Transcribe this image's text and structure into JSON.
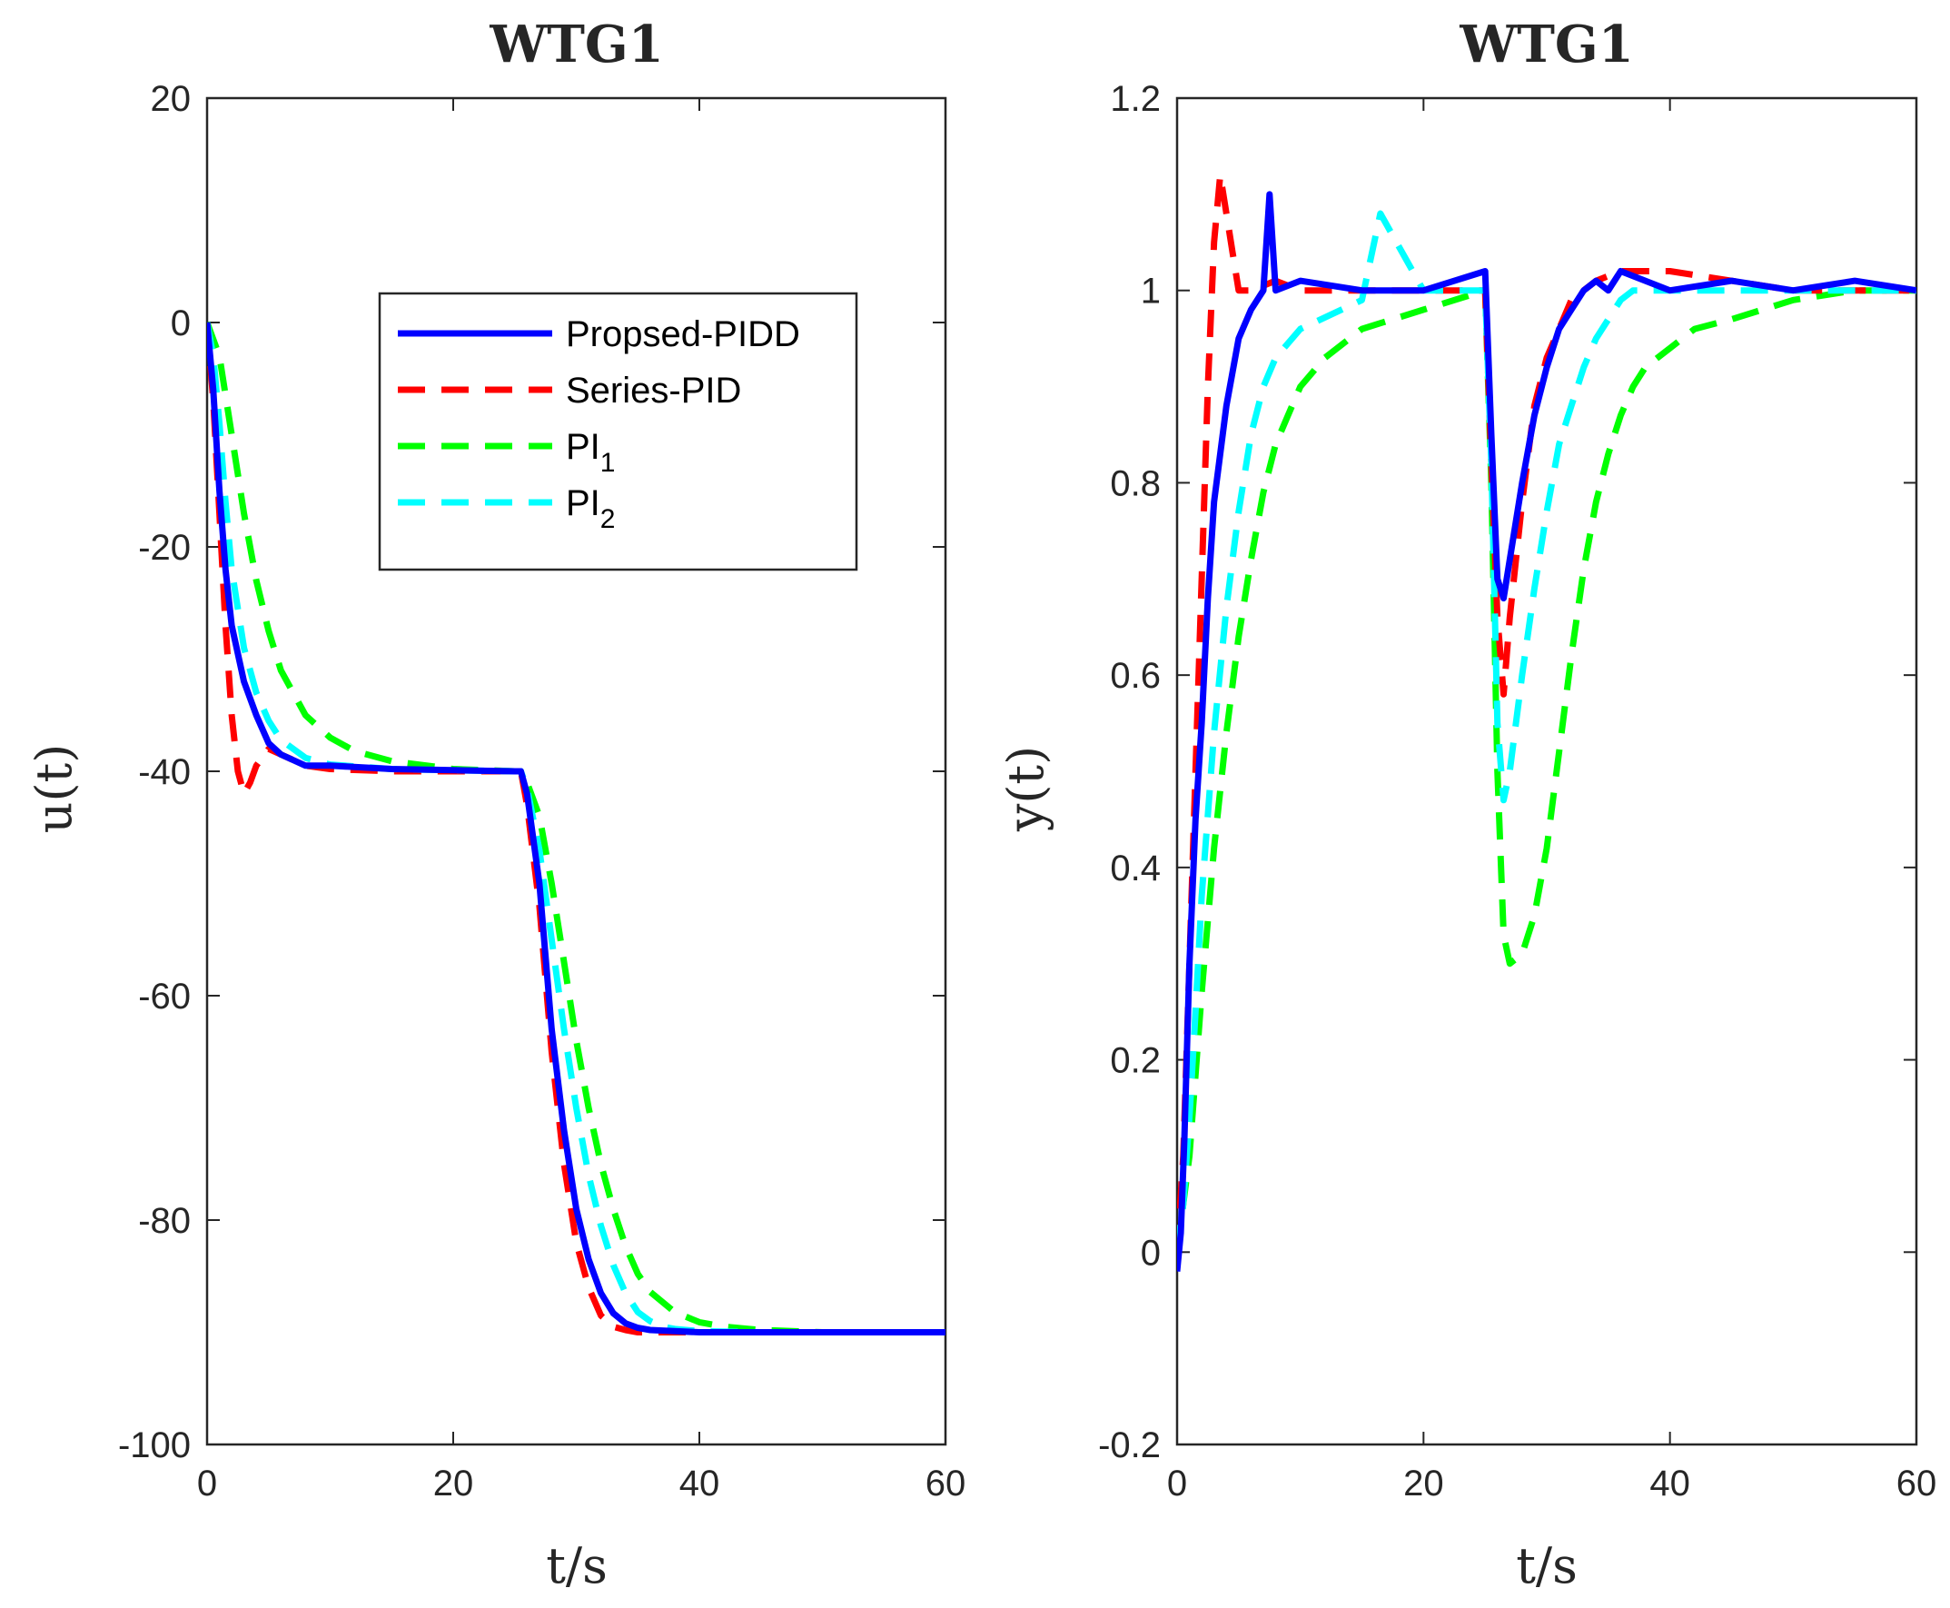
{
  "chart_data": [
    {
      "type": "line",
      "title": "WTG1",
      "xlabel": "t/s",
      "ylabel": "u(t)",
      "xlim": [
        0,
        60
      ],
      "ylim": [
        -100,
        20
      ],
      "xticks": [
        0,
        20,
        40,
        60
      ],
      "yticks": [
        -100,
        -80,
        -60,
        -40,
        -20,
        0,
        20
      ],
      "grid": false,
      "legend": {
        "location": "upper center",
        "entries": [
          {
            "label": "Propsed-PIDD",
            "sub": "",
            "color": "#0000ff",
            "style": "solid"
          },
          {
            "label": "Series-PID",
            "sub": "",
            "color": "#ff0000",
            "style": "dashed"
          },
          {
            "label": "PI",
            "sub": "1",
            "color": "#00ff00",
            "style": "dashed"
          },
          {
            "label": "PI",
            "sub": "2",
            "color": "#00ffff",
            "style": "dashed"
          }
        ]
      },
      "series": [
        {
          "name": "Propsed-PIDD",
          "color": "#0000ff",
          "style": "solid",
          "x": [
            0,
            0.5,
            1,
            1.5,
            2,
            3,
            4,
            5,
            6,
            8,
            10,
            15,
            20,
            25,
            25.5,
            26,
            27,
            28,
            29,
            30,
            31,
            32,
            33,
            34,
            35,
            36,
            38,
            40,
            45,
            50,
            55,
            60
          ],
          "y": [
            0,
            -6,
            -15,
            -22,
            -27,
            -32,
            -35,
            -37.5,
            -38.5,
            -39.5,
            -39.5,
            -39.8,
            -39.9,
            -40,
            -40,
            -42,
            -50,
            -63,
            -72,
            -79,
            -83.5,
            -86.5,
            -88.3,
            -89.2,
            -89.6,
            -89.8,
            -89.9,
            -90,
            -90,
            -90,
            -90,
            -90
          ]
        },
        {
          "name": "Series-PID",
          "color": "#ff0000",
          "style": "dashed",
          "x": [
            0,
            0.5,
            1,
            1.5,
            2,
            2.5,
            3,
            3.5,
            4,
            5,
            6,
            8,
            10,
            15,
            20,
            25,
            25.5,
            26,
            27,
            28,
            29,
            30,
            31,
            32,
            33,
            34,
            35,
            36,
            38,
            40,
            45,
            50,
            55,
            60
          ],
          "y": [
            0,
            -7,
            -17,
            -27,
            -35,
            -40,
            -42,
            -41,
            -39.5,
            -38,
            -38.5,
            -39.5,
            -39.8,
            -40,
            -40,
            -40,
            -40,
            -43,
            -52,
            -65,
            -75,
            -82,
            -86,
            -88.5,
            -89.5,
            -89.8,
            -90,
            -90,
            -90,
            -90,
            -90,
            -90,
            -90,
            -90
          ]
        },
        {
          "name": "PI_1",
          "color": "#00ff00",
          "style": "dashed",
          "x": [
            0,
            1,
            2,
            3,
            4,
            5,
            6,
            8,
            10,
            12,
            15,
            20,
            25,
            25.5,
            26,
            27,
            28,
            29,
            30,
            31,
            32,
            33,
            34,
            35,
            36,
            38,
            40,
            42,
            45,
            50,
            55,
            60
          ],
          "y": [
            0,
            -3,
            -10,
            -17,
            -23,
            -27.5,
            -31,
            -35,
            -37,
            -38.2,
            -39.1,
            -39.8,
            -40,
            -40,
            -41,
            -44,
            -50,
            -57,
            -64,
            -70,
            -75,
            -79,
            -82.3,
            -84.8,
            -86.4,
            -88.2,
            -89.1,
            -89.5,
            -89.8,
            -90,
            -90,
            -90
          ]
        },
        {
          "name": "PI_2",
          "color": "#00ffff",
          "style": "dashed",
          "x": [
            0,
            0.5,
            1,
            1.5,
            2,
            3,
            4,
            5,
            6,
            8,
            10,
            15,
            20,
            25,
            25.5,
            26,
            27,
            28,
            29,
            30,
            31,
            32,
            33,
            34,
            35,
            36,
            37,
            38,
            40,
            45,
            50,
            55,
            60
          ],
          "y": [
            0,
            -3,
            -9,
            -16,
            -22,
            -29,
            -33,
            -35.5,
            -37.2,
            -38.8,
            -39.4,
            -39.8,
            -39.9,
            -40,
            -40,
            -41.5,
            -47,
            -55,
            -63,
            -70,
            -76,
            -80.5,
            -84,
            -86.5,
            -88.2,
            -89,
            -89.5,
            -89.7,
            -89.9,
            -90,
            -90,
            -90,
            -90
          ]
        }
      ]
    },
    {
      "type": "line",
      "title": "WTG1",
      "xlabel": "t/s",
      "ylabel": "y(t)",
      "xlim": [
        0,
        60
      ],
      "ylim": [
        -0.2,
        1.2
      ],
      "xticks": [
        0,
        20,
        40,
        60
      ],
      "yticks": [
        -0.2,
        0,
        0.2,
        0.4,
        0.6,
        0.8,
        1,
        1.2
      ],
      "grid": false,
      "series": [
        {
          "name": "Propsed-PIDD",
          "color": "#0000ff",
          "style": "solid",
          "x": [
            0,
            0.3,
            0.6,
            1,
            1.5,
            2,
            2.5,
            3,
            4,
            5,
            6,
            7,
            7.5,
            8,
            10,
            15,
            20,
            25,
            25.5,
            26,
            26.5,
            27,
            28,
            29,
            30,
            31,
            32,
            33,
            34,
            35,
            36,
            40,
            45,
            50,
            55,
            60
          ],
          "y": [
            -0.02,
            0.02,
            0.12,
            0.3,
            0.45,
            0.55,
            0.68,
            0.78,
            0.88,
            0.95,
            0.98,
            1.0,
            1.1,
            1.0,
            1.01,
            1.0,
            1.0,
            1.02,
            0.85,
            0.7,
            0.68,
            0.72,
            0.8,
            0.87,
            0.92,
            0.96,
            0.98,
            1.0,
            1.01,
            1.0,
            1.02,
            1.0,
            1.01,
            1.0,
            1.01,
            1.0
          ]
        },
        {
          "name": "Series-PID",
          "color": "#ff0000",
          "style": "dashed",
          "x": [
            0,
            0.5,
            1,
            1.5,
            2,
            2.5,
            3,
            3.5,
            4,
            4.5,
            5,
            6,
            8,
            10,
            15,
            20,
            25,
            25.5,
            26,
            26.5,
            27,
            28,
            29,
            30,
            31,
            32,
            34,
            36,
            40,
            45,
            50,
            55,
            60
          ],
          "y": [
            0,
            0.1,
            0.3,
            0.5,
            0.7,
            0.9,
            1.05,
            1.12,
            1.08,
            1.04,
            1.0,
            1.0,
            1.01,
            1.0,
            1.0,
            1.0,
            1.0,
            0.82,
            0.66,
            0.58,
            0.66,
            0.78,
            0.88,
            0.93,
            0.96,
            0.99,
            1.01,
            1.02,
            1.02,
            1.01,
            1.0,
            1.0,
            1.0
          ]
        },
        {
          "name": "PI_1",
          "color": "#00ff00",
          "style": "dashed",
          "x": [
            0,
            1,
            2,
            3,
            4,
            5,
            6,
            7,
            8,
            9,
            10,
            12,
            15,
            20,
            25,
            25.5,
            26,
            26.5,
            27,
            28,
            29,
            30,
            31,
            32,
            33,
            34,
            35,
            36,
            37,
            38,
            40,
            42,
            45,
            50,
            55,
            60
          ],
          "y": [
            0,
            0.1,
            0.27,
            0.42,
            0.54,
            0.64,
            0.72,
            0.79,
            0.84,
            0.87,
            0.9,
            0.93,
            0.96,
            0.98,
            1.0,
            0.8,
            0.5,
            0.33,
            0.3,
            0.31,
            0.35,
            0.42,
            0.52,
            0.62,
            0.71,
            0.78,
            0.83,
            0.87,
            0.9,
            0.92,
            0.94,
            0.96,
            0.97,
            0.99,
            1.0,
            1.0
          ]
        },
        {
          "name": "PI_2",
          "color": "#00ffff",
          "style": "dashed",
          "x": [
            0,
            0.5,
            1,
            1.5,
            2,
            3,
            4,
            5,
            6,
            7,
            8,
            10,
            15,
            16.5,
            20,
            25,
            25.5,
            26,
            26.5,
            27,
            28,
            29,
            30,
            31,
            32,
            33,
            34,
            35,
            36,
            37,
            38,
            40,
            45,
            50,
            55,
            60
          ],
          "y": [
            0,
            0.05,
            0.14,
            0.25,
            0.37,
            0.54,
            0.67,
            0.77,
            0.85,
            0.9,
            0.93,
            0.96,
            0.99,
            1.08,
            1.0,
            1.0,
            0.82,
            0.55,
            0.47,
            0.5,
            0.6,
            0.69,
            0.77,
            0.84,
            0.88,
            0.92,
            0.95,
            0.97,
            0.99,
            1.0,
            1.0,
            1.0,
            1.0,
            1.0,
            1.0,
            1.0
          ]
        }
      ]
    }
  ]
}
